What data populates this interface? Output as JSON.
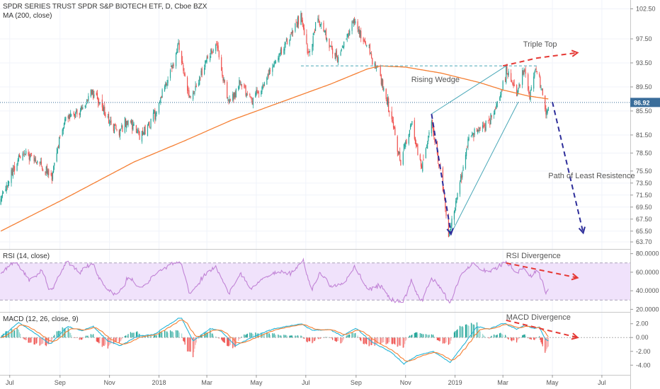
{
  "chart_data": [
    {
      "panel": "price",
      "type": "candlestick",
      "title": "SPDR SERIES TRUST SPDR S&P BIOTECH ETF, D, Cboe BZX",
      "indicator_label": "MA (200, close)",
      "ylim": [
        63.0,
        103.5
      ],
      "yticks": [
        "102.50",
        "97.50",
        "93.50",
        "89.50",
        "85.50",
        "81.50",
        "78.50",
        "75.50",
        "73.50",
        "71.50",
        "69.50",
        "67.50",
        "65.50",
        "63.70"
      ],
      "last_price_label": "86.92",
      "last_price": 86.92,
      "anchors": [
        {
          "x": "2017-06-20",
          "y": 70.5
        },
        {
          "x": "2017-07-05",
          "y": 75.5
        },
        {
          "x": "2017-07-20",
          "y": 79.0
        },
        {
          "x": "2017-08-10",
          "y": 76.5
        },
        {
          "x": "2017-08-22",
          "y": 74.5
        },
        {
          "x": "2017-09-05",
          "y": 83.5
        },
        {
          "x": "2017-09-25",
          "y": 85.5
        },
        {
          "x": "2017-10-10",
          "y": 89.0
        },
        {
          "x": "2017-10-25",
          "y": 85.5
        },
        {
          "x": "2017-11-10",
          "y": 82.0
        },
        {
          "x": "2017-11-25",
          "y": 84.0
        },
        {
          "x": "2017-12-10",
          "y": 81.0
        },
        {
          "x": "2017-12-25",
          "y": 84.5
        },
        {
          "x": "2018-01-10",
          "y": 90.0
        },
        {
          "x": "2018-01-25",
          "y": 96.5
        },
        {
          "x": "2018-02-08",
          "y": 87.5
        },
        {
          "x": "2018-02-25",
          "y": 92.5
        },
        {
          "x": "2018-03-12",
          "y": 97.0
        },
        {
          "x": "2018-03-28",
          "y": 86.5
        },
        {
          "x": "2018-04-10",
          "y": 90.0
        },
        {
          "x": "2018-04-25",
          "y": 87.5
        },
        {
          "x": "2018-05-10",
          "y": 89.5
        },
        {
          "x": "2018-05-25",
          "y": 94.0
        },
        {
          "x": "2018-06-10",
          "y": 97.0
        },
        {
          "x": "2018-06-25",
          "y": 101.5
        },
        {
          "x": "2018-07-05",
          "y": 94.5
        },
        {
          "x": "2018-07-15",
          "y": 101.0
        },
        {
          "x": "2018-07-30",
          "y": 96.5
        },
        {
          "x": "2018-08-10",
          "y": 94.0
        },
        {
          "x": "2018-08-28",
          "y": 100.5
        },
        {
          "x": "2018-09-12",
          "y": 97.0
        },
        {
          "x": "2018-09-30",
          "y": 91.5
        },
        {
          "x": "2018-10-15",
          "y": 84.5
        },
        {
          "x": "2018-10-25",
          "y": 77.0
        },
        {
          "x": "2018-11-08",
          "y": 83.5
        },
        {
          "x": "2018-11-20",
          "y": 76.0
        },
        {
          "x": "2018-12-03",
          "y": 84.0
        },
        {
          "x": "2018-12-15",
          "y": 74.0
        },
        {
          "x": "2018-12-24",
          "y": 65.0
        },
        {
          "x": "2019-01-05",
          "y": 72.0
        },
        {
          "x": "2019-01-18",
          "y": 81.0
        },
        {
          "x": "2019-02-05",
          "y": 83.0
        },
        {
          "x": "2019-02-20",
          "y": 85.5
        },
        {
          "x": "2019-03-05",
          "y": 92.0
        },
        {
          "x": "2019-03-18",
          "y": 88.5
        },
        {
          "x": "2019-03-26",
          "y": 92.5
        },
        {
          "x": "2019-04-03",
          "y": 87.5
        },
        {
          "x": "2019-04-11",
          "y": 93.0
        },
        {
          "x": "2019-04-18",
          "y": 89.0
        },
        {
          "x": "2019-04-23",
          "y": 84.5
        },
        {
          "x": "2019-04-26",
          "y": 86.9
        }
      ],
      "ma200_anchors": [
        {
          "x": "2017-06-20",
          "y": 65.5
        },
        {
          "x": "2017-09-01",
          "y": 70.5
        },
        {
          "x": "2017-12-01",
          "y": 77.0
        },
        {
          "x": "2018-02-01",
          "y": 80.5
        },
        {
          "x": "2018-04-01",
          "y": 84.0
        },
        {
          "x": "2018-06-01",
          "y": 87.0
        },
        {
          "x": "2018-08-01",
          "y": 90.0
        },
        {
          "x": "2018-09-15",
          "y": 92.5
        },
        {
          "x": "2018-10-01",
          "y": 93.0
        },
        {
          "x": "2018-11-01",
          "y": 92.8
        },
        {
          "x": "2018-12-15",
          "y": 91.8
        },
        {
          "x": "2019-02-01",
          "y": 90.2
        },
        {
          "x": "2019-03-01",
          "y": 89.0
        },
        {
          "x": "2019-04-01",
          "y": 88.0
        },
        {
          "x": "2019-04-26",
          "y": 87.5
        }
      ],
      "annotations": [
        {
          "text": "Triple Top",
          "x": "2019-03-26",
          "y": 96.2
        },
        {
          "text": "Rising Wedge",
          "x": "2018-11-08",
          "y": 90.3
        },
        {
          "text": "Path of Least Resistence",
          "x": "2019-04-26",
          "y": 74.3
        }
      ],
      "resistance_line": {
        "x1": "2018-06-25",
        "x2": "2019-04-12",
        "y": 93.0
      },
      "wedge_lines": [
        [
          {
            "x": "2018-12-03",
            "y": 85.0
          },
          {
            "x": "2019-03-05",
            "y": 93.0
          }
        ],
        [
          {
            "x": "2018-12-26",
            "y": 64.8
          },
          {
            "x": "2019-03-20",
            "y": 87.0
          }
        ]
      ],
      "drop_path": [
        {
          "x": "2018-12-03",
          "y": 85.0
        },
        {
          "x": "2018-12-27",
          "y": 65.0
        }
      ],
      "projection_path": [
        {
          "x": "2019-05-01",
          "y": 87.0
        },
        {
          "x": "2019-06-08",
          "y": 65.2
        }
      ],
      "top_trend": [
        {
          "x": "2019-03-01",
          "y": 93.0
        },
        {
          "x": "2019-04-12",
          "y": 94.3
        },
        {
          "x": "2019-06-01",
          "y": 95.2
        }
      ]
    },
    {
      "panel": "rsi",
      "type": "line",
      "indicator_label": "RSI (14, close)",
      "ylim": [
        18.0,
        82.0
      ],
      "yticks": [
        "80.0000",
        "60.0000",
        "40.0000",
        "20.0000"
      ],
      "bands": [
        70,
        30
      ],
      "annotation": "RSI Divergence",
      "anchors": [
        {
          "x": "2017-06-20",
          "y": 58
        },
        {
          "x": "2017-07-08",
          "y": 72
        },
        {
          "x": "2017-07-25",
          "y": 52
        },
        {
          "x": "2017-08-10",
          "y": 62
        },
        {
          "x": "2017-08-20",
          "y": 38
        },
        {
          "x": "2017-09-10",
          "y": 72
        },
        {
          "x": "2017-09-25",
          "y": 60
        },
        {
          "x": "2017-10-10",
          "y": 70
        },
        {
          "x": "2017-10-25",
          "y": 46
        },
        {
          "x": "2017-11-10",
          "y": 35
        },
        {
          "x": "2017-11-25",
          "y": 55
        },
        {
          "x": "2017-12-10",
          "y": 42
        },
        {
          "x": "2017-12-28",
          "y": 58
        },
        {
          "x": "2018-01-15",
          "y": 68
        },
        {
          "x": "2018-01-28",
          "y": 72
        },
        {
          "x": "2018-02-08",
          "y": 36
        },
        {
          "x": "2018-02-25",
          "y": 56
        },
        {
          "x": "2018-03-12",
          "y": 66
        },
        {
          "x": "2018-03-28",
          "y": 38
        },
        {
          "x": "2018-04-12",
          "y": 58
        },
        {
          "x": "2018-04-25",
          "y": 42
        },
        {
          "x": "2018-05-12",
          "y": 55
        },
        {
          "x": "2018-05-28",
          "y": 60
        },
        {
          "x": "2018-06-12",
          "y": 58
        },
        {
          "x": "2018-06-28",
          "y": 73
        },
        {
          "x": "2018-07-08",
          "y": 40
        },
        {
          "x": "2018-07-18",
          "y": 60
        },
        {
          "x": "2018-08-02",
          "y": 44
        },
        {
          "x": "2018-08-15",
          "y": 46
        },
        {
          "x": "2018-08-30",
          "y": 66
        },
        {
          "x": "2018-09-15",
          "y": 42
        },
        {
          "x": "2018-10-01",
          "y": 46
        },
        {
          "x": "2018-10-15",
          "y": 30
        },
        {
          "x": "2018-10-28",
          "y": 26
        },
        {
          "x": "2018-11-08",
          "y": 50
        },
        {
          "x": "2018-11-20",
          "y": 28
        },
        {
          "x": "2018-12-03",
          "y": 54
        },
        {
          "x": "2018-12-15",
          "y": 42
        },
        {
          "x": "2018-12-26",
          "y": 27
        },
        {
          "x": "2019-01-08",
          "y": 58
        },
        {
          "x": "2019-01-22",
          "y": 70
        },
        {
          "x": "2019-02-08",
          "y": 60
        },
        {
          "x": "2019-02-22",
          "y": 64
        },
        {
          "x": "2019-03-05",
          "y": 71
        },
        {
          "x": "2019-03-18",
          "y": 58
        },
        {
          "x": "2019-03-26",
          "y": 66
        },
        {
          "x": "2019-04-05",
          "y": 55
        },
        {
          "x": "2019-04-12",
          "y": 63
        },
        {
          "x": "2019-04-19",
          "y": 50
        },
        {
          "x": "2019-04-23",
          "y": 36
        },
        {
          "x": "2019-04-26",
          "y": 42
        }
      ],
      "divergence_arrow": [
        {
          "x": "2019-03-05",
          "y": 70
        },
        {
          "x": "2019-06-01",
          "y": 54
        }
      ]
    },
    {
      "panel": "macd",
      "type": "histogram+line",
      "indicator_label": "MACD (12, 26, close, 9)",
      "ylim": [
        -5.2,
        3.2
      ],
      "yticks": [
        "2.00",
        "0.00",
        "-2.00",
        "-4.00"
      ],
      "annotation": "MACD Divergence",
      "macd_anchors": [
        {
          "x": "2017-06-20",
          "y": 0.0
        },
        {
          "x": "2017-07-12",
          "y": 2.2
        },
        {
          "x": "2017-07-30",
          "y": 0.8
        },
        {
          "x": "2017-08-20",
          "y": -1.0
        },
        {
          "x": "2017-09-10",
          "y": 1.6
        },
        {
          "x": "2017-09-28",
          "y": 1.0
        },
        {
          "x": "2017-10-12",
          "y": 1.6
        },
        {
          "x": "2017-10-30",
          "y": -0.5
        },
        {
          "x": "2017-11-15",
          "y": -1.2
        },
        {
          "x": "2017-12-05",
          "y": 0.2
        },
        {
          "x": "2017-12-25",
          "y": 0.4
        },
        {
          "x": "2018-01-15",
          "y": 2.0
        },
        {
          "x": "2018-01-28",
          "y": 3.0
        },
        {
          "x": "2018-02-12",
          "y": -0.5
        },
        {
          "x": "2018-03-05",
          "y": 1.3
        },
        {
          "x": "2018-03-18",
          "y": 1.0
        },
        {
          "x": "2018-04-05",
          "y": -1.2
        },
        {
          "x": "2018-04-25",
          "y": 0.0
        },
        {
          "x": "2018-05-20",
          "y": 1.2
        },
        {
          "x": "2018-06-25",
          "y": 2.0
        },
        {
          "x": "2018-07-10",
          "y": 1.0
        },
        {
          "x": "2018-07-30",
          "y": 1.2
        },
        {
          "x": "2018-08-15",
          "y": 0.2
        },
        {
          "x": "2018-09-01",
          "y": 1.4
        },
        {
          "x": "2018-09-20",
          "y": -0.6
        },
        {
          "x": "2018-10-15",
          "y": -2.2
        },
        {
          "x": "2018-10-30",
          "y": -3.8
        },
        {
          "x": "2018-11-15",
          "y": -2.6
        },
        {
          "x": "2018-12-05",
          "y": -2.0
        },
        {
          "x": "2018-12-26",
          "y": -3.6
        },
        {
          "x": "2019-01-12",
          "y": -1.0
        },
        {
          "x": "2019-01-28",
          "y": 1.6
        },
        {
          "x": "2019-02-12",
          "y": 1.2
        },
        {
          "x": "2019-03-02",
          "y": 2.1
        },
        {
          "x": "2019-03-18",
          "y": 1.2
        },
        {
          "x": "2019-03-28",
          "y": 1.8
        },
        {
          "x": "2019-04-08",
          "y": 1.3
        },
        {
          "x": "2019-04-15",
          "y": 1.5
        },
        {
          "x": "2019-04-22",
          "y": -0.2
        },
        {
          "x": "2019-04-26",
          "y": -0.5
        }
      ],
      "divergence_arrow": [
        {
          "x": "2019-03-05",
          "y": 2.5
        },
        {
          "x": "2019-06-01",
          "y": 0.0
        }
      ]
    }
  ],
  "x_axis": {
    "ticks": [
      {
        "label": "Jul",
        "date": "2017-07-01"
      },
      {
        "label": "Sep",
        "date": "2017-09-01"
      },
      {
        "label": "Nov",
        "date": "2017-11-01"
      },
      {
        "label": "2018",
        "date": "2018-01-01"
      },
      {
        "label": "Mar",
        "date": "2018-03-01"
      },
      {
        "label": "May",
        "date": "2018-05-01"
      },
      {
        "label": "Jul",
        "date": "2018-07-01"
      },
      {
        "label": "Sep",
        "date": "2018-09-01"
      },
      {
        "label": "Nov",
        "date": "2018-11-01"
      },
      {
        "label": "2019",
        "date": "2019-01-01"
      },
      {
        "label": "Mar",
        "date": "2019-03-01"
      },
      {
        "label": "May",
        "date": "2019-05-01"
      },
      {
        "label": "Jul",
        "date": "2019-07-01"
      }
    ],
    "range": [
      "2017-06-19",
      "2019-08-05"
    ]
  },
  "colors": {
    "up": "#26a69a",
    "down": "#ef5350",
    "ma": "#f57f33",
    "rsi": "#c183d6",
    "rsi_band": "#f0e2fb",
    "macd": "#26b5d8",
    "signal": "#f57f33",
    "hist_up": "#26a69a",
    "hist_down": "#ef5350",
    "annotation_red": "#e53935",
    "annotation_blue": "#2d2d9a",
    "wedge": "#4aa8b8",
    "last_price_bg": "#3a6d9a"
  }
}
